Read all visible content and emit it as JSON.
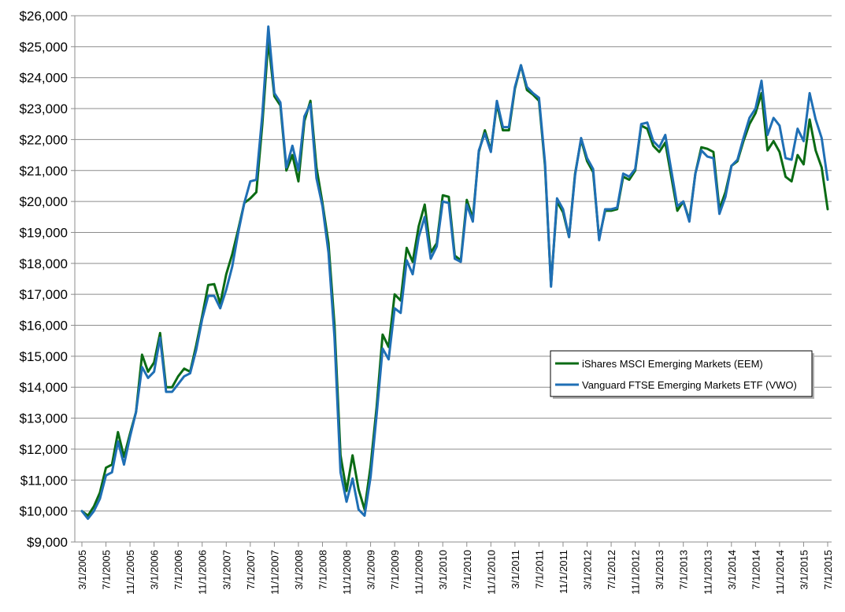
{
  "chart_data": {
    "type": "line",
    "title": "",
    "xlabel": "",
    "ylabel": "",
    "ylim": [
      9000,
      26000
    ],
    "grid": "horizontal",
    "legend_position": "right-center",
    "y_ticks": [
      "$9,000",
      "$10,000",
      "$11,000",
      "$12,000",
      "$13,000",
      "$14,000",
      "$15,000",
      "$16,000",
      "$17,000",
      "$18,000",
      "$19,000",
      "$20,000",
      "$21,000",
      "$22,000",
      "$23,000",
      "$24,000",
      "$25,000",
      "$26,000"
    ],
    "x_ticks": [
      "3/1/2005",
      "7/1/2005",
      "11/1/2005",
      "3/1/2006",
      "7/1/2006",
      "11/1/2006",
      "3/1/2007",
      "7/1/2007",
      "11/1/2007",
      "3/1/2008",
      "7/1/2008",
      "11/1/2008",
      "3/1/2009",
      "7/1/2009",
      "11/1/2009",
      "3/1/2010",
      "7/1/2010",
      "11/1/2010",
      "3/1/2011",
      "7/1/2011",
      "11/1/2011",
      "3/1/2012",
      "7/1/2012",
      "11/1/2012",
      "3/1/2013",
      "7/1/2013",
      "11/1/2013",
      "3/1/2014",
      "7/1/2014",
      "11/1/2014",
      "3/1/2015",
      "7/1/2015"
    ],
    "series": [
      {
        "name": "iShares MSCI Emerging Markets (EEM)",
        "color": "#0b6b14",
        "points": [
          [
            "3/1/2005",
            10000
          ],
          [
            "4/1/2005",
            9850
          ],
          [
            "5/1/2005",
            10150
          ],
          [
            "6/1/2005",
            10600
          ],
          [
            "7/1/2005",
            11400
          ],
          [
            "8/1/2005",
            11500
          ],
          [
            "9/1/2005",
            12550
          ],
          [
            "10/1/2005",
            11750
          ],
          [
            "11/1/2005",
            12500
          ],
          [
            "12/1/2005",
            13200
          ],
          [
            "1/1/2006",
            15050
          ],
          [
            "2/1/2006",
            14500
          ],
          [
            "3/1/2006",
            14800
          ],
          [
            "4/1/2006",
            15750
          ],
          [
            "5/1/2006",
            14000
          ],
          [
            "6/1/2006",
            14000
          ],
          [
            "7/1/2006",
            14350
          ],
          [
            "8/1/2006",
            14600
          ],
          [
            "9/1/2006",
            14500
          ],
          [
            "10/1/2006",
            15350
          ],
          [
            "11/1/2006",
            16300
          ],
          [
            "12/1/2006",
            17300
          ],
          [
            "1/1/2007",
            17330
          ],
          [
            "2/1/2007",
            16700
          ],
          [
            "3/1/2007",
            17650
          ],
          [
            "4/1/2007",
            18300
          ],
          [
            "5/1/2007",
            19100
          ],
          [
            "6/1/2007",
            19950
          ],
          [
            "7/1/2007",
            20100
          ],
          [
            "8/1/2007",
            20300
          ],
          [
            "9/1/2007",
            22500
          ],
          [
            "10/1/2007",
            25200
          ],
          [
            "11/1/2007",
            23400
          ],
          [
            "12/1/2007",
            23100
          ],
          [
            "1/1/2008",
            21000
          ],
          [
            "2/1/2008",
            21500
          ],
          [
            "3/1/2008",
            20650
          ],
          [
            "4/1/2008",
            22600
          ],
          [
            "5/1/2008",
            23250
          ],
          [
            "6/1/2008",
            21100
          ],
          [
            "7/1/2008",
            19950
          ],
          [
            "8/1/2008",
            18650
          ],
          [
            "9/1/2008",
            16000
          ],
          [
            "10/1/2008",
            11800
          ],
          [
            "11/1/2008",
            10650
          ],
          [
            "12/1/2008",
            11800
          ],
          [
            "1/1/2009",
            10700
          ],
          [
            "2/1/2009",
            10050
          ],
          [
            "3/1/2009",
            11450
          ],
          [
            "4/1/2009",
            13350
          ],
          [
            "5/1/2009",
            15700
          ],
          [
            "6/1/2009",
            15300
          ],
          [
            "7/1/2009",
            17000
          ],
          [
            "8/1/2009",
            16800
          ],
          [
            "9/1/2009",
            18500
          ],
          [
            "10/1/2009",
            18050
          ],
          [
            "11/1/2009",
            19200
          ],
          [
            "12/1/2009",
            19900
          ],
          [
            "1/1/2010",
            18350
          ],
          [
            "2/1/2010",
            18650
          ],
          [
            "3/1/2010",
            20200
          ],
          [
            "4/1/2010",
            20150
          ],
          [
            "5/1/2010",
            18250
          ],
          [
            "6/1/2010",
            18100
          ],
          [
            "7/1/2010",
            20050
          ],
          [
            "8/1/2010",
            19450
          ],
          [
            "9/1/2010",
            21600
          ],
          [
            "10/1/2010",
            22300
          ],
          [
            "11/1/2010",
            21650
          ],
          [
            "12/1/2010",
            23150
          ],
          [
            "1/1/2011",
            22300
          ],
          [
            "2/1/2011",
            22300
          ],
          [
            "3/1/2011",
            23650
          ],
          [
            "4/1/2011",
            24400
          ],
          [
            "5/1/2011",
            23600
          ],
          [
            "6/1/2011",
            23450
          ],
          [
            "7/1/2011",
            23250
          ],
          [
            "8/1/2011",
            21150
          ],
          [
            "9/1/2011",
            17300
          ],
          [
            "10/1/2011",
            20000
          ],
          [
            "11/1/2011",
            19650
          ],
          [
            "12/1/2011",
            18850
          ],
          [
            "1/1/2012",
            20900
          ],
          [
            "2/1/2012",
            22000
          ],
          [
            "3/1/2012",
            21300
          ],
          [
            "4/1/2012",
            20950
          ],
          [
            "5/1/2012",
            18800
          ],
          [
            "6/1/2012",
            19700
          ],
          [
            "7/1/2012",
            19700
          ],
          [
            "8/1/2012",
            19750
          ],
          [
            "9/1/2012",
            20800
          ],
          [
            "10/1/2012",
            20700
          ],
          [
            "11/1/2012",
            21000
          ],
          [
            "12/1/2012",
            22450
          ],
          [
            "1/1/2013",
            22350
          ],
          [
            "2/1/2013",
            21800
          ],
          [
            "3/1/2013",
            21600
          ],
          [
            "4/1/2013",
            21900
          ],
          [
            "5/1/2013",
            20800
          ],
          [
            "6/1/2013",
            19700
          ],
          [
            "7/1/2013",
            20000
          ],
          [
            "8/1/2013",
            19400
          ],
          [
            "9/1/2013",
            20900
          ],
          [
            "10/1/2013",
            21750
          ],
          [
            "11/1/2013",
            21700
          ],
          [
            "12/1/2013",
            21600
          ],
          [
            "1/1/2014",
            19750
          ],
          [
            "2/1/2014",
            20300
          ],
          [
            "3/1/2014",
            21150
          ],
          [
            "4/1/2014",
            21300
          ],
          [
            "5/1/2014",
            21950
          ],
          [
            "6/1/2014",
            22500
          ],
          [
            "7/1/2014",
            22850
          ],
          [
            "8/1/2014",
            23500
          ],
          [
            "9/1/2014",
            21650
          ],
          [
            "10/1/2014",
            21950
          ],
          [
            "11/1/2014",
            21600
          ],
          [
            "12/1/2014",
            20800
          ],
          [
            "1/1/2015",
            20650
          ],
          [
            "2/1/2015",
            21500
          ],
          [
            "3/1/2015",
            21200
          ],
          [
            "4/1/2015",
            22650
          ],
          [
            "5/1/2015",
            21650
          ],
          [
            "6/1/2015",
            21100
          ],
          [
            "7/1/2015",
            19750
          ]
        ]
      },
      {
        "name": "Vanguard FTSE Emerging Markets ETF (VWO)",
        "color": "#1f6fb5",
        "points": [
          [
            "3/1/2005",
            10000
          ],
          [
            "4/1/2005",
            9750
          ],
          [
            "5/1/2005",
            10000
          ],
          [
            "6/1/2005",
            10400
          ],
          [
            "7/1/2005",
            11150
          ],
          [
            "8/1/2005",
            11250
          ],
          [
            "9/1/2005",
            12250
          ],
          [
            "10/1/2005",
            11500
          ],
          [
            "11/1/2005",
            12400
          ],
          [
            "12/1/2005",
            13200
          ],
          [
            "1/1/2006",
            14650
          ],
          [
            "2/1/2006",
            14300
          ],
          [
            "3/1/2006",
            14500
          ],
          [
            "4/1/2006",
            15600
          ],
          [
            "5/1/2006",
            13850
          ],
          [
            "6/1/2006",
            13850
          ],
          [
            "7/1/2006",
            14100
          ],
          [
            "8/1/2006",
            14350
          ],
          [
            "9/1/2006",
            14450
          ],
          [
            "10/1/2006",
            15200
          ],
          [
            "11/1/2006",
            16200
          ],
          [
            "12/1/2006",
            16950
          ],
          [
            "1/1/2007",
            16950
          ],
          [
            "2/1/2007",
            16550
          ],
          [
            "3/1/2007",
            17150
          ],
          [
            "4/1/2007",
            17900
          ],
          [
            "5/1/2007",
            19000
          ],
          [
            "6/1/2007",
            19950
          ],
          [
            "7/1/2007",
            20650
          ],
          [
            "8/1/2007",
            20700
          ],
          [
            "9/1/2007",
            22800
          ],
          [
            "10/1/2007",
            25650
          ],
          [
            "11/1/2007",
            23500
          ],
          [
            "12/1/2007",
            23200
          ],
          [
            "1/1/2008",
            21100
          ],
          [
            "2/1/2008",
            21800
          ],
          [
            "3/1/2008",
            21000
          ],
          [
            "4/1/2008",
            22750
          ],
          [
            "5/1/2008",
            23150
          ],
          [
            "6/1/2008",
            20750
          ],
          [
            "7/1/2008",
            19850
          ],
          [
            "8/1/2008",
            18350
          ],
          [
            "9/1/2008",
            15600
          ],
          [
            "10/1/2008",
            11250
          ],
          [
            "11/1/2008",
            10300
          ],
          [
            "12/1/2008",
            11050
          ],
          [
            "1/1/2009",
            10050
          ],
          [
            "2/1/2009",
            9850
          ],
          [
            "3/1/2009",
            11100
          ],
          [
            "4/1/2009",
            13100
          ],
          [
            "5/1/2009",
            15250
          ],
          [
            "6/1/2009",
            14900
          ],
          [
            "7/1/2009",
            16550
          ],
          [
            "8/1/2009",
            16400
          ],
          [
            "9/1/2009",
            18100
          ],
          [
            "10/1/2009",
            17650
          ],
          [
            "11/1/2009",
            18850
          ],
          [
            "12/1/2009",
            19500
          ],
          [
            "1/1/2010",
            18150
          ],
          [
            "2/1/2010",
            18550
          ],
          [
            "3/1/2010",
            20000
          ],
          [
            "4/1/2010",
            19950
          ],
          [
            "5/1/2010",
            18150
          ],
          [
            "6/1/2010",
            18050
          ],
          [
            "7/1/2010",
            19900
          ],
          [
            "8/1/2010",
            19350
          ],
          [
            "9/1/2010",
            21650
          ],
          [
            "10/1/2010",
            22200
          ],
          [
            "11/1/2010",
            21600
          ],
          [
            "12/1/2010",
            23250
          ],
          [
            "1/1/2011",
            22400
          ],
          [
            "2/1/2011",
            22400
          ],
          [
            "3/1/2011",
            23700
          ],
          [
            "4/1/2011",
            24400
          ],
          [
            "5/1/2011",
            23700
          ],
          [
            "6/1/2011",
            23500
          ],
          [
            "7/1/2011",
            23350
          ],
          [
            "8/1/2011",
            21250
          ],
          [
            "9/1/2011",
            17250
          ],
          [
            "10/1/2011",
            20100
          ],
          [
            "11/1/2011",
            19750
          ],
          [
            "12/1/2011",
            18850
          ],
          [
            "1/1/2012",
            20850
          ],
          [
            "2/1/2012",
            22050
          ],
          [
            "3/1/2012",
            21400
          ],
          [
            "4/1/2012",
            21050
          ],
          [
            "5/1/2012",
            18750
          ],
          [
            "6/1/2012",
            19750
          ],
          [
            "7/1/2012",
            19750
          ],
          [
            "8/1/2012",
            19800
          ],
          [
            "9/1/2012",
            20900
          ],
          [
            "10/1/2012",
            20800
          ],
          [
            "11/1/2012",
            21050
          ],
          [
            "12/1/2012",
            22500
          ],
          [
            "1/1/2013",
            22550
          ],
          [
            "2/1/2013",
            21950
          ],
          [
            "3/1/2013",
            21750
          ],
          [
            "4/1/2013",
            22150
          ],
          [
            "5/1/2013",
            21000
          ],
          [
            "6/1/2013",
            19850
          ],
          [
            "7/1/2013",
            20000
          ],
          [
            "8/1/2013",
            19350
          ],
          [
            "9/1/2013",
            20900
          ],
          [
            "10/1/2013",
            21650
          ],
          [
            "11/1/2013",
            21450
          ],
          [
            "12/1/2013",
            21400
          ],
          [
            "1/1/2014",
            19600
          ],
          [
            "2/1/2014",
            20150
          ],
          [
            "3/1/2014",
            21150
          ],
          [
            "4/1/2014",
            21350
          ],
          [
            "5/1/2014",
            22050
          ],
          [
            "6/1/2014",
            22700
          ],
          [
            "7/1/2014",
            23000
          ],
          [
            "8/1/2014",
            23900
          ],
          [
            "9/1/2014",
            22150
          ],
          [
            "10/1/2014",
            22700
          ],
          [
            "11/1/2014",
            22450
          ],
          [
            "12/1/2014",
            21400
          ],
          [
            "1/1/2015",
            21350
          ],
          [
            "2/1/2015",
            22350
          ],
          [
            "3/1/2015",
            21950
          ],
          [
            "4/1/2015",
            23500
          ],
          [
            "5/1/2015",
            22650
          ],
          [
            "6/1/2015",
            22050
          ],
          [
            "7/1/2015",
            20700
          ]
        ]
      }
    ]
  }
}
